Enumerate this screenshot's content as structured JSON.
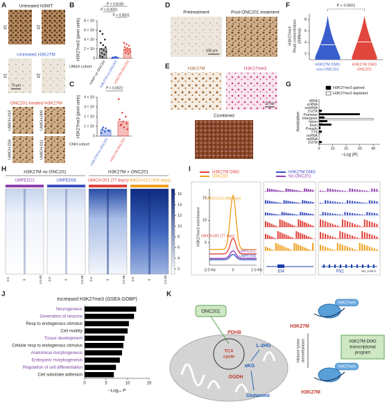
{
  "A": {
    "label": "A",
    "sections": [
      {
        "title": "Untreated H3WT",
        "color": "#222222",
        "tiles": [
          "#1",
          "#2"
        ]
      },
      {
        "title": "Untreated H3K27M",
        "color": "#3a5fcd",
        "tiles": [
          "#1",
          "#2"
        ],
        "scale": "70 μm"
      },
      {
        "title": "ONC201-treated H3K27M",
        "color": "#d8402f",
        "tiles": [
          "UMICH-019",
          "UMICH-009",
          "UMICH-034",
          "UMICH-011"
        ]
      }
    ]
  },
  "B": {
    "label": "B",
    "ylabel": "H3K27me3 (pixel units)",
    "cohort": "UMich cohort",
    "ylim": [
      0,
      80000000
    ],
    "yticks": [
      {
        "value": 0,
        "label": "0"
      },
      {
        "value": 20000000,
        "label": "2 × 10⁷"
      },
      {
        "value": 40000000,
        "label": "4 × 10⁷"
      },
      {
        "value": 60000000,
        "label": "6 × 10⁷"
      },
      {
        "value": 80000000,
        "label": "8 × 10⁷"
      }
    ],
    "categories": [
      "H3WT no ONC201",
      "H3K27M no ONC201",
      "H3K27M ONC201"
    ],
    "colors": [
      "#222222",
      "#3a5fcd",
      "#e0463c"
    ],
    "means": [
      21000000,
      1500000,
      20000000
    ],
    "points": [
      [
        58000000,
        52000000,
        40000000,
        33000000,
        28000000,
        24000000,
        20000000,
        17000000,
        14000000,
        11000000,
        8000000,
        5000000,
        3000000
      ],
      [
        500000,
        1000000,
        1500000,
        2000000,
        2500000,
        1200000,
        800000,
        3000000
      ],
      [
        33000000,
        30000000,
        27000000,
        24000000,
        22000000,
        20000000,
        18000000,
        16000000,
        14000000,
        12000000,
        10000000
      ]
    ],
    "comparisons": [
      "P = 0.8136",
      "P < 0.0001",
      "P < 0.0001"
    ]
  },
  "C": {
    "label": "C",
    "ylabel": "H3K27me3 (pixel units)",
    "cohort": "CNH cohort",
    "ylim": [
      0,
      40000000
    ],
    "yticks": [
      {
        "value": 0,
        "label": "0"
      },
      {
        "value": 10000000,
        "label": "1 × 10⁷"
      },
      {
        "value": 20000000,
        "label": "2 × 10⁷"
      },
      {
        "value": 30000000,
        "label": "3 × 10⁷"
      },
      {
        "value": 40000000,
        "label": "4 × 10⁷"
      }
    ],
    "categories": [
      "H3K27M no ONC201",
      "H3K27M ONC201"
    ],
    "colors": [
      "#3a5fcd",
      "#e0463c"
    ],
    "means": [
      6000000,
      15000000
    ],
    "points": [
      [
        3000000,
        4500000,
        6000000,
        7000000,
        8000000,
        5000000,
        9000000
      ],
      [
        38000000,
        24000000,
        20000000,
        17000000,
        15000000,
        13000000,
        11000000,
        9000000,
        7000000,
        12000000
      ]
    ],
    "comparison": "P = 0.0022"
  },
  "D": {
    "label": "D",
    "titles": [
      "Pretreatment",
      "Post-ONC201 treatment"
    ],
    "scale": "100 μm"
  },
  "E": {
    "label": "E",
    "titles": [
      "H3K27M",
      "H3K27me3"
    ],
    "combined": "Combined",
    "scale": "20 μm"
  },
  "F": {
    "label": "F",
    "ylabel": [
      "H3K27me3",
      "Read concentration",
      "(DiffBind)"
    ],
    "ylim": [
      1,
      9
    ],
    "yticks": [
      2,
      4,
      6,
      8
    ],
    "categories": [
      [
        "H3K27M DMG",
        "non-ONC201"
      ],
      [
        "H3K27M DMG",
        "ONC201"
      ]
    ],
    "colors": [
      "#3a5fcd",
      "#e0463c"
    ],
    "medians": [
      3.6,
      4.1
    ],
    "comparison": "P < 0.0001"
  },
  "G": {
    "label": "G",
    "ylabel": "Annotation",
    "xlabel": "−Log (P)",
    "xlim": [
      0,
      45
    ],
    "xticks": [
      0,
      10,
      20,
      30,
      40
    ],
    "categories": [
      "rRNA",
      "scRNA",
      "snoRNA",
      "5′UTR",
      "Promoter",
      "Intergenic",
      "Intron",
      "Exon",
      "Pseudo",
      "TTS",
      "ncRNA",
      "miRNA",
      "3′UTR"
    ],
    "series": [
      {
        "name": "H3K27me3 gained",
        "color": "#000000",
        "values": [
          0,
          0,
          0,
          2,
          30,
          4,
          6,
          9,
          1,
          2,
          0,
          0,
          2
        ]
      },
      {
        "name": "H3K27me3 depleted",
        "color": "#ffffff",
        "values": [
          0,
          0,
          0,
          1,
          3,
          40,
          2,
          1,
          0,
          1,
          0,
          0,
          1
        ]
      }
    ]
  },
  "H": {
    "label": "H",
    "groups": [
      "H3K27M no ONC201",
      "H3K27M + ONC201"
    ],
    "samples": [
      {
        "name": "UMPED22",
        "color": "#8e3fae"
      },
      {
        "name": "UMPED58",
        "color": "#3a4fc0"
      },
      {
        "name": "UMICH-001 (77 days)",
        "color": "#e0403a"
      },
      {
        "name": "UMICH-012 (400 days)",
        "color": "#f0a020"
      }
    ],
    "xtick_labels": [
      "-2.0",
      "0",
      "2.0 Kb"
    ],
    "colorbar_lim": [
      1,
      17
    ],
    "colorbar_ticks": [
      2,
      4,
      6,
      8,
      10,
      12,
      14,
      16
    ]
  },
  "I": {
    "label": "I",
    "legend": [
      {
        "title": "H3K27M DMG",
        "sub": "ONC201",
        "colors": [
          "#e0403a",
          "#f0a020"
        ]
      },
      {
        "title": "H3K27M DMG",
        "sub": "No ONC201",
        "colors": [
          "#3a4fc0",
          "#8e3fae"
        ]
      }
    ],
    "ylabel": "H3K27me3 enrichment",
    "ylim": [
      0,
      17
    ],
    "yticks": [
      5,
      10,
      15
    ],
    "xtick_labels": [
      "-2.0 Kb",
      "0",
      "2.0 Kb"
    ],
    "series": [
      {
        "name": "UMICH-012 (400 days)",
        "color": "#f0a020",
        "base": 3.5,
        "peak": 15.5
      },
      {
        "name": "UMICH-001 (77 days)",
        "color": "#e0403a",
        "base": 2.5,
        "peak": 6
      },
      {
        "name": "UMPED22",
        "color": "#8e3fae",
        "base": 1.5,
        "peak": 3.2
      },
      {
        "name": "UMPED58",
        "color": "#3a4fc0",
        "base": 1.2,
        "peak": 2.4
      }
    ],
    "genes": [
      "ID4",
      "FN1",
      "NR_103571"
    ]
  },
  "J": {
    "label": "J",
    "title": "Increased H3K27me3 (GSEA GOBP)",
    "xlabel": "−Log₁₀ P",
    "xlim": [
      0,
      15
    ],
    "xticks": [
      0,
      5,
      10,
      15
    ],
    "categories": [
      "Neurogenesis",
      "Generation of neurons",
      "Resp to endogenous stimulus",
      "Cell motility",
      "Tissue development",
      "Cellular resp to endogenous stimulus",
      "Anatomical morphogenesis",
      "Embryonic morphogenesis",
      "Regulation of cell differentiation",
      "Cell substrate adhesion"
    ],
    "values": [
      12,
      11.5,
      10.3,
      10,
      9.3,
      9,
      8.7,
      8.2,
      7.3,
      6.8
    ],
    "label_colors": [
      "#7b3fa0",
      "#7b3fa0",
      "#222222",
      "#222222",
      "#7b3fa0",
      "#222222",
      "#7b3fa0",
      "#7b3fa0",
      "#7b3fa0",
      "#222222"
    ],
    "color": "#000000"
  },
  "K": {
    "label": "K",
    "drug": "ONC201",
    "pdhb": "PDHB",
    "tca": [
      "TCA",
      "cycle"
    ],
    "akg": "αKG",
    "ogdh": "OGDH",
    "l2hg": "L-2HG",
    "glutamine": "Glutamine",
    "h3k27m": [
      "H3K27M",
      "H3K27M"
    ],
    "h3k27me3": [
      "H3K27me3",
      "H3K27me3"
    ],
    "kdm": [
      "Histone lysine",
      "demethylases"
    ],
    "program": [
      "H3K27M-DMG",
      "transcriptional",
      "program"
    ]
  }
}
